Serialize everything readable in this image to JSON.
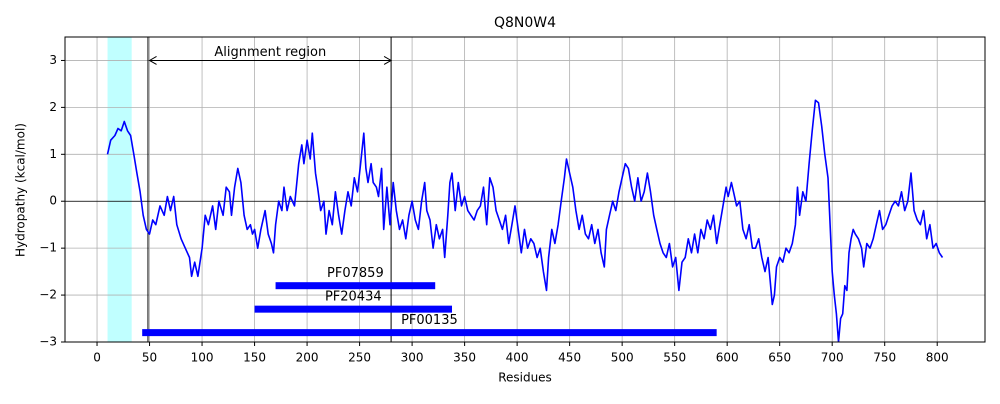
{
  "chart_data": {
    "type": "line",
    "title": "Q8N0W4",
    "x_label": "Residues",
    "y_label": "Hydropathy (kcal/mol)",
    "x": [
      10,
      13,
      17,
      20,
      23,
      26,
      29,
      32,
      35,
      38,
      41,
      44,
      47,
      50,
      53,
      56,
      60,
      64,
      67,
      70,
      73,
      76,
      80,
      84,
      88,
      90,
      93,
      96,
      100,
      103,
      106,
      110,
      113,
      116,
      120,
      123,
      126,
      128,
      131,
      134,
      137,
      140,
      143,
      146,
      148,
      150,
      153,
      156,
      160,
      163,
      166,
      168,
      170,
      173,
      176,
      178,
      181,
      184,
      188,
      192,
      195,
      197,
      200,
      203,
      205,
      208,
      210,
      213,
      216,
      218,
      221,
      224,
      227,
      230,
      233,
      236,
      239,
      242,
      245,
      248,
      251,
      254,
      256,
      258,
      261,
      263,
      266,
      268,
      271,
      273,
      276,
      279,
      282,
      285,
      288,
      291,
      294,
      297,
      300,
      303,
      306,
      309,
      312,
      314,
      317,
      320,
      323,
      326,
      329,
      331,
      334,
      336,
      338,
      341,
      344,
      347,
      350,
      353,
      356,
      359,
      362,
      365,
      368,
      371,
      374,
      377,
      380,
      383,
      386,
      389,
      392,
      395,
      398,
      401,
      404,
      407,
      410,
      413,
      416,
      419,
      422,
      425,
      428,
      430,
      433,
      436,
      439,
      442,
      445,
      447,
      450,
      453,
      456,
      459,
      462,
      465,
      468,
      471,
      474,
      477,
      480,
      483,
      485,
      488,
      491,
      494,
      497,
      500,
      503,
      506,
      509,
      512,
      515,
      518,
      521,
      524,
      527,
      530,
      533,
      536,
      539,
      542,
      545,
      548,
      551,
      554,
      557,
      560,
      563,
      566,
      569,
      572,
      575,
      578,
      581,
      584,
      587,
      590,
      593,
      596,
      599,
      601,
      604,
      606,
      609,
      612,
      615,
      618,
      621,
      624,
      627,
      630,
      633,
      636,
      639,
      641,
      643,
      645,
      647,
      650,
      653,
      656,
      659,
      662,
      665,
      667,
      669,
      672,
      675,
      678,
      681,
      684,
      687,
      690,
      693,
      696,
      698,
      700,
      702,
      704,
      706,
      708,
      710,
      712,
      714,
      716,
      718,
      720,
      722,
      725,
      728,
      730,
      733,
      736,
      739,
      742,
      745,
      748,
      751,
      754,
      757,
      760,
      763,
      766,
      769,
      772,
      775,
      778,
      781,
      784,
      787,
      790,
      793,
      796,
      799,
      802,
      805
    ],
    "values": [
      1.0,
      1.3,
      1.4,
      1.55,
      1.5,
      1.7,
      1.5,
      1.4,
      1.0,
      0.6,
      0.2,
      -0.3,
      -0.6,
      -0.7,
      -0.4,
      -0.5,
      -0.1,
      -0.3,
      0.1,
      -0.2,
      0.1,
      -0.5,
      -0.8,
      -1.0,
      -1.2,
      -1.6,
      -1.3,
      -1.6,
      -1.0,
      -0.3,
      -0.5,
      -0.1,
      -0.6,
      0.0,
      -0.3,
      0.3,
      0.2,
      -0.3,
      0.3,
      0.7,
      0.4,
      -0.3,
      -0.6,
      -0.5,
      -0.7,
      -0.6,
      -1.0,
      -0.6,
      -0.2,
      -0.7,
      -0.9,
      -1.1,
      -0.5,
      0.0,
      -0.2,
      0.3,
      -0.2,
      0.1,
      -0.1,
      0.8,
      1.2,
      0.8,
      1.3,
      0.9,
      1.45,
      0.6,
      0.3,
      -0.2,
      0.0,
      -0.7,
      -0.2,
      -0.5,
      0.2,
      -0.3,
      -0.7,
      -0.2,
      0.2,
      -0.1,
      0.5,
      0.2,
      0.8,
      1.45,
      0.7,
      0.4,
      0.8,
      0.4,
      0.3,
      0.1,
      0.7,
      -0.6,
      0.3,
      -0.5,
      0.4,
      -0.2,
      -0.6,
      -0.4,
      -0.8,
      -0.3,
      0.0,
      -0.4,
      -0.6,
      0.0,
      0.4,
      -0.2,
      -0.4,
      -1.0,
      -0.5,
      -0.8,
      -0.6,
      -1.2,
      -0.3,
      0.4,
      0.6,
      -0.2,
      0.4,
      -0.1,
      0.1,
      -0.2,
      -0.3,
      -0.4,
      -0.2,
      -0.1,
      0.3,
      -0.5,
      0.5,
      0.3,
      -0.2,
      -0.4,
      -0.6,
      -0.3,
      -0.9,
      -0.5,
      -0.1,
      -0.6,
      -1.1,
      -0.6,
      -1.0,
      -0.8,
      -0.9,
      -1.2,
      -1.0,
      -1.5,
      -1.9,
      -1.2,
      -0.6,
      -0.9,
      -0.5,
      0.0,
      0.5,
      0.9,
      0.6,
      0.3,
      -0.2,
      -0.6,
      -0.3,
      -0.7,
      -0.8,
      -0.5,
      -0.9,
      -0.6,
      -1.1,
      -1.4,
      -0.6,
      -0.3,
      0.0,
      -0.2,
      0.2,
      0.5,
      0.8,
      0.7,
      0.3,
      0.0,
      0.5,
      0.0,
      0.2,
      0.6,
      0.2,
      -0.3,
      -0.6,
      -0.9,
      -1.1,
      -1.2,
      -0.9,
      -1.4,
      -1.2,
      -1.9,
      -1.3,
      -1.2,
      -0.8,
      -1.1,
      -0.7,
      -1.1,
      -0.6,
      -0.8,
      -0.4,
      -0.6,
      -0.3,
      -0.9,
      -0.5,
      -0.1,
      0.3,
      0.1,
      0.4,
      0.2,
      -0.1,
      0.0,
      -0.6,
      -0.8,
      -0.5,
      -1.0,
      -1.0,
      -0.8,
      -1.2,
      -1.5,
      -1.2,
      -1.7,
      -2.2,
      -2.0,
      -1.4,
      -1.2,
      -1.3,
      -1.0,
      -1.1,
      -0.9,
      -0.5,
      0.3,
      -0.3,
      0.2,
      0.0,
      0.8,
      1.5,
      2.15,
      2.1,
      1.6,
      1.0,
      0.5,
      -0.5,
      -1.5,
      -2.0,
      -2.4,
      -3.0,
      -2.5,
      -2.4,
      -1.8,
      -1.9,
      -1.1,
      -0.8,
      -0.6,
      -0.7,
      -0.8,
      -1.0,
      -1.4,
      -0.9,
      -1.0,
      -0.8,
      -0.5,
      -0.2,
      -0.6,
      -0.5,
      -0.3,
      -0.1,
      0.0,
      -0.1,
      0.2,
      -0.2,
      0.0,
      0.6,
      -0.2,
      -0.4,
      -0.5,
      -0.2,
      -0.8,
      -0.5,
      -1.0,
      -0.9,
      -1.1,
      -1.2
    ],
    "color": "#0000ff",
    "xlim": [
      -30.5,
      845.5
    ],
    "ylim": [
      -3,
      3.5
    ],
    "xticks": [
      0,
      50,
      100,
      150,
      200,
      250,
      300,
      350,
      400,
      450,
      500,
      550,
      600,
      650,
      700,
      750,
      800
    ],
    "yticks": [
      {
        "value": -3,
        "label": "−3"
      },
      {
        "value": -2,
        "label": "−2"
      },
      {
        "value": -1,
        "label": "−1"
      },
      0,
      1,
      2,
      3
    ],
    "grid": true,
    "hline": 0,
    "highlight_span": {
      "start": 10,
      "end": 33,
      "color": "#c0ffff"
    },
    "vlines": [
      48.5,
      280
    ],
    "alignment_region": {
      "label": "Alignment region",
      "start": 50,
      "end": 280,
      "y": 3
    },
    "domains": [
      {
        "name": "PF07859",
        "start": 170,
        "end": 322,
        "y": -1.8
      },
      {
        "name": "PF20434",
        "start": 150,
        "end": 338,
        "y": -2.3
      },
      {
        "name": "PF00135",
        "start": 43,
        "end": 590,
        "y": -2.8
      }
    ],
    "domain_color": "#0000ff"
  }
}
